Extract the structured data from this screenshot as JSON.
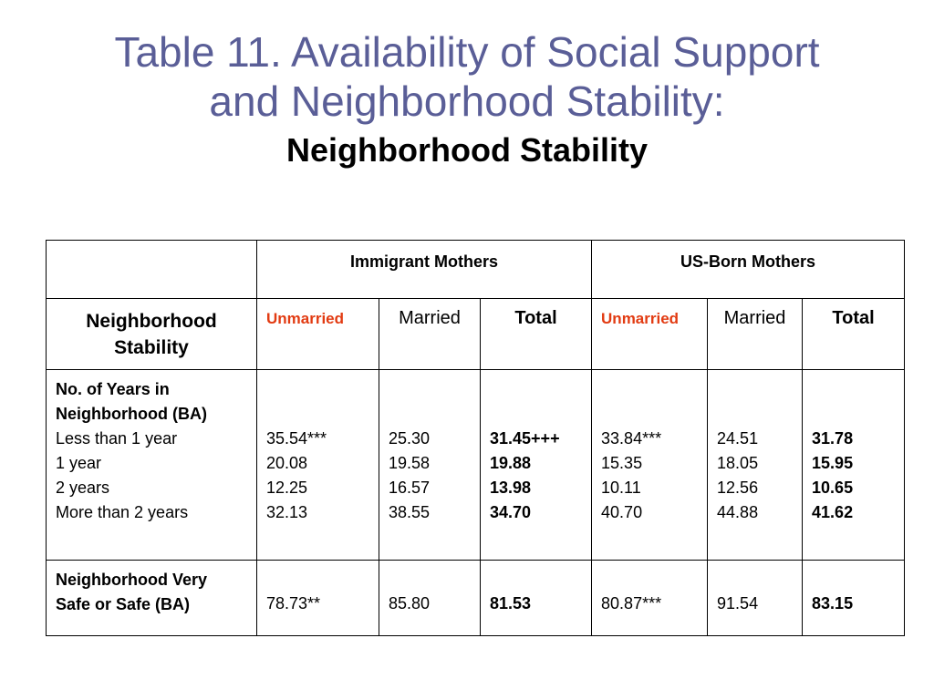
{
  "title": {
    "line1": "Table 11. Availability of Social Support",
    "line2": "and Neighborhood Stability:",
    "subtitle": "Neighborhood Stability"
  },
  "table": {
    "groups": [
      "Immigrant Mothers",
      "US-Born Mothers"
    ],
    "row_header": "Neighborhood Stability",
    "subheaders": [
      "Unmarried",
      "Married",
      "Total",
      "Unmarried",
      "Married",
      "Total"
    ],
    "years": {
      "label1": "No. of Years in",
      "label2": "Neighborhood (BA)",
      "items": [
        "Less than 1 year",
        "1 year",
        "2 years",
        "More than 2 years"
      ],
      "columns": [
        [
          "35.54***",
          "20.08",
          "12.25",
          "32.13"
        ],
        [
          "25.30",
          "19.58",
          "16.57",
          "38.55"
        ],
        [
          "31.45+++",
          "19.88",
          "13.98",
          "34.70"
        ],
        [
          "33.84***",
          "15.35",
          "10.11",
          "40.70"
        ],
        [
          "24.51",
          "18.05",
          "12.56",
          "44.88"
        ],
        [
          "31.78",
          "15.95",
          "10.65",
          "41.62"
        ]
      ]
    },
    "safe": {
      "label1": "Neighborhood Very",
      "label2": "Safe or Safe (BA)",
      "values": [
        "78.73**",
        "85.80",
        "81.53",
        "80.87***",
        "91.54",
        "83.15"
      ]
    }
  },
  "colors": {
    "title": "#5a5e97",
    "unmarried": "#e23b12",
    "border": "#000000"
  }
}
